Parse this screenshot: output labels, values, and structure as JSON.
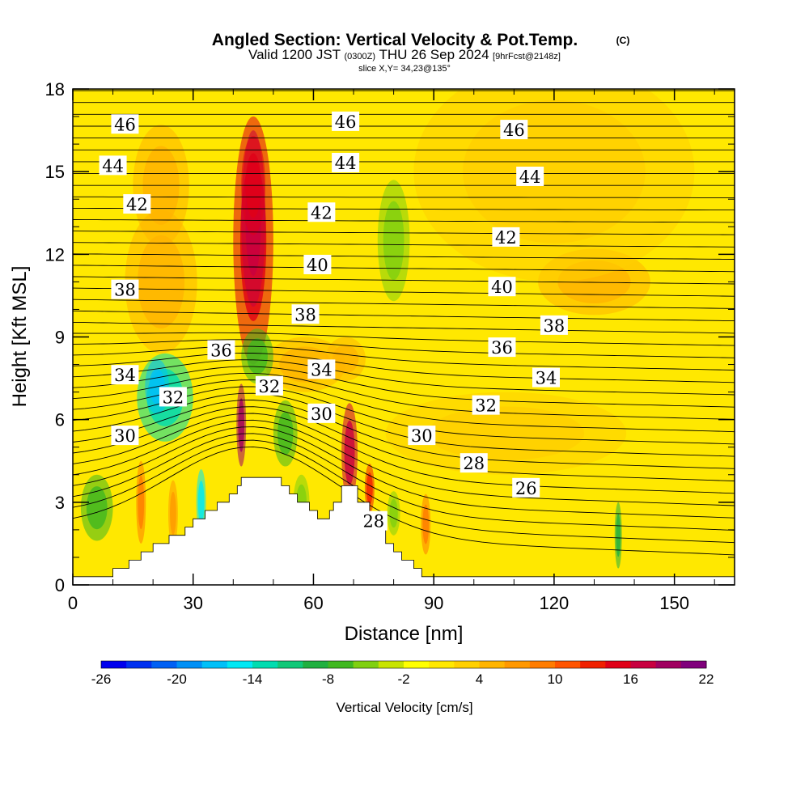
{
  "title": {
    "main": "Angled Section: Vertical Velocity & Pot.Temp.",
    "main_suffix": "(C)",
    "valid_prefix": "Valid 1200 JST",
    "valid_z": "(0300Z)",
    "valid_date": "THU 26 Sep 2024",
    "valid_fcst": "[9hrFcst@2148z]",
    "slice": "slice X,Y= 34,23@135°"
  },
  "chart_data": {
    "type": "heatmap",
    "xlabel": "Distance [nm]",
    "ylabel": "Height [Kft MSL]",
    "xlim": [
      0,
      165
    ],
    "ylim": [
      0,
      18
    ],
    "x_ticks": [
      "0",
      "30",
      "60",
      "90",
      "120",
      "150"
    ],
    "y_ticks": [
      "0",
      "3",
      "6",
      "9",
      "12",
      "15",
      "18"
    ],
    "x_tick_values": [
      0,
      30,
      60,
      90,
      120,
      150
    ],
    "y_tick_values": [
      0,
      3,
      6,
      9,
      12,
      15,
      18
    ],
    "colorbar": {
      "label": "Vertical Velocity [cm/s]",
      "tick_labels": [
        "-26",
        "-20",
        "-14",
        "-8",
        "-2",
        "4",
        "10",
        "16",
        "22"
      ],
      "levels": [
        -26,
        -24,
        -22,
        -20,
        -18,
        -16,
        -14,
        -12,
        -10,
        -8,
        -6,
        -4,
        -2,
        0,
        2,
        4,
        6,
        8,
        10,
        12,
        14,
        16,
        18,
        20,
        22
      ],
      "colors": [
        "#0000ee",
        "#0030f0",
        "#0060f4",
        "#0090f6",
        "#00c0f8",
        "#00e8f4",
        "#00dcb0",
        "#10c878",
        "#20b040",
        "#40b820",
        "#80d010",
        "#c8e400",
        "#ffff00",
        "#ffe800",
        "#ffd000",
        "#ffb400",
        "#ff9800",
        "#ff7c00",
        "#ff5400",
        "#f02000",
        "#e00018",
        "#c80040",
        "#a00060",
        "#80007c"
      ]
    },
    "contour_labels": [
      {
        "text": "46",
        "x": 13,
        "y": 16.7
      },
      {
        "text": "46",
        "x": 68,
        "y": 16.8
      },
      {
        "text": "46",
        "x": 110,
        "y": 16.5
      },
      {
        "text": "44",
        "x": 10,
        "y": 15.2
      },
      {
        "text": "44",
        "x": 68,
        "y": 15.3
      },
      {
        "text": "44",
        "x": 114,
        "y": 14.8
      },
      {
        "text": "42",
        "x": 16,
        "y": 13.8
      },
      {
        "text": "42",
        "x": 62,
        "y": 13.5
      },
      {
        "text": "42",
        "x": 108,
        "y": 12.6
      },
      {
        "text": "40",
        "x": 61,
        "y": 11.6
      },
      {
        "text": "40",
        "x": 107,
        "y": 10.8
      },
      {
        "text": "38",
        "x": 13,
        "y": 10.7
      },
      {
        "text": "38",
        "x": 58,
        "y": 9.8
      },
      {
        "text": "38",
        "x": 120,
        "y": 9.4
      },
      {
        "text": "36",
        "x": 37,
        "y": 8.5
      },
      {
        "text": "36",
        "x": 107,
        "y": 8.6
      },
      {
        "text": "34",
        "x": 13,
        "y": 7.6
      },
      {
        "text": "34",
        "x": 62,
        "y": 7.8
      },
      {
        "text": "34",
        "x": 118,
        "y": 7.5
      },
      {
        "text": "32",
        "x": 25,
        "y": 6.8
      },
      {
        "text": "32",
        "x": 49,
        "y": 7.2
      },
      {
        "text": "32",
        "x": 103,
        "y": 6.5
      },
      {
        "text": "30",
        "x": 13,
        "y": 5.4
      },
      {
        "text": "30",
        "x": 62,
        "y": 6.2
      },
      {
        "text": "30",
        "x": 87,
        "y": 5.4
      },
      {
        "text": "28",
        "x": 100,
        "y": 4.4
      },
      {
        "text": "28",
        "x": 75,
        "y": 2.3
      },
      {
        "text": "26",
        "x": 113,
        "y": 3.5
      }
    ]
  }
}
